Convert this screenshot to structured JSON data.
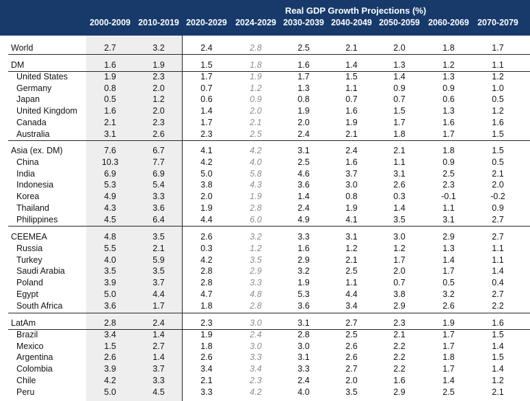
{
  "title": "Real GDP Growth Projections (%)",
  "columns": [
    "2000-2009",
    "2010-2019",
    "2020-2029",
    "2024-2029",
    "2030-2039",
    "2040-2049",
    "2050-2059",
    "2060-2069",
    "2070-2079"
  ],
  "groups": [
    {
      "rows": [
        {
          "name": "World",
          "values": [
            "2.7",
            "3.2",
            "2.4",
            "2.8",
            "2.5",
            "2.1",
            "2.0",
            "1.8",
            "1.7"
          ]
        }
      ]
    },
    {
      "rows": [
        {
          "name": "DM",
          "values": [
            "1.6",
            "1.9",
            "1.5",
            "1.8",
            "1.6",
            "1.4",
            "1.3",
            "1.2",
            "1.1"
          ]
        },
        {
          "name": "United States",
          "values": [
            "1.9",
            "2.3",
            "1.7",
            "1.9",
            "1.7",
            "1.5",
            "1.4",
            "1.3",
            "1.2"
          ]
        },
        {
          "name": "Germany",
          "values": [
            "0.8",
            "2.0",
            "0.7",
            "1.2",
            "1.3",
            "1.1",
            "0.9",
            "0.9",
            "1.0"
          ]
        },
        {
          "name": "Japan",
          "values": [
            "0.5",
            "1.2",
            "0.6",
            "0.9",
            "0.8",
            "0.7",
            "0.7",
            "0.6",
            "0.5"
          ]
        },
        {
          "name": "United Kingdom",
          "values": [
            "1.6",
            "2.0",
            "1.4",
            "2.0",
            "1.9",
            "1.6",
            "1.5",
            "1.3",
            "1.2"
          ]
        },
        {
          "name": "Canada",
          "values": [
            "2.1",
            "2.3",
            "1.7",
            "2.1",
            "2.0",
            "1.9",
            "1.7",
            "1.6",
            "1.6"
          ]
        },
        {
          "name": "Australia",
          "values": [
            "3.1",
            "2.6",
            "2.3",
            "2.5",
            "2.4",
            "2.1",
            "1.8",
            "1.7",
            "1.5"
          ]
        }
      ]
    },
    {
      "rows": [
        {
          "name": "Asia (ex. DM)",
          "values": [
            "7.6",
            "6.7",
            "4.1",
            "4.2",
            "3.1",
            "2.4",
            "2.1",
            "1.8",
            "1.5"
          ]
        },
        {
          "name": "China",
          "values": [
            "10.3",
            "7.7",
            "4.2",
            "4.0",
            "2.5",
            "1.6",
            "1.1",
            "0.9",
            "0.5"
          ]
        },
        {
          "name": "India",
          "values": [
            "6.9",
            "6.9",
            "5.0",
            "5.8",
            "4.6",
            "3.7",
            "3.1",
            "2.5",
            "2.1"
          ]
        },
        {
          "name": "Indonesia",
          "values": [
            "5.3",
            "5.4",
            "3.8",
            "4.3",
            "3.6",
            "3.0",
            "2.6",
            "2.3",
            "2.0"
          ]
        },
        {
          "name": "Korea",
          "values": [
            "4.9",
            "3.3",
            "2.0",
            "1.9",
            "1.4",
            "0.8",
            "0.3",
            "-0.1",
            "-0.2"
          ]
        },
        {
          "name": "Thailand",
          "values": [
            "4.3",
            "3.6",
            "1.9",
            "2.8",
            "2.4",
            "1.9",
            "1.4",
            "1.1",
            "0.9"
          ]
        },
        {
          "name": "Philippines",
          "values": [
            "4.5",
            "6.4",
            "4.4",
            "6.0",
            "4.9",
            "4.1",
            "3.5",
            "3.1",
            "2.7"
          ]
        }
      ]
    },
    {
      "rows": [
        {
          "name": "CEEMEA",
          "values": [
            "4.8",
            "3.5",
            "2.6",
            "3.2",
            "3.3",
            "3.1",
            "3.0",
            "2.9",
            "2.7"
          ]
        },
        {
          "name": "Russia",
          "values": [
            "5.5",
            "2.1",
            "0.3",
            "1.2",
            "1.6",
            "1.2",
            "1.2",
            "1.3",
            "1.1"
          ]
        },
        {
          "name": "Turkey",
          "values": [
            "4.0",
            "5.9",
            "4.2",
            "3.5",
            "2.9",
            "2.1",
            "1.7",
            "1.4",
            "1.1"
          ]
        },
        {
          "name": "Saudi Arabia",
          "values": [
            "3.5",
            "3.5",
            "2.8",
            "2.9",
            "3.2",
            "2.5",
            "2.0",
            "1.7",
            "1.4"
          ]
        },
        {
          "name": "Poland",
          "values": [
            "3.9",
            "3.7",
            "2.8",
            "3.3",
            "1.9",
            "1.1",
            "0.7",
            "0.5",
            "0.4"
          ]
        },
        {
          "name": "Egypt",
          "values": [
            "5.0",
            "4.4",
            "4.7",
            "4.8",
            "5.3",
            "4.4",
            "3.8",
            "3.2",
            "2.7"
          ]
        },
        {
          "name": "South Africa",
          "values": [
            "3.6",
            "1.7",
            "1.8",
            "2.8",
            "3.6",
            "3.4",
            "2.9",
            "2.6",
            "2.2"
          ]
        }
      ]
    },
    {
      "rows": [
        {
          "name": "LatAm",
          "values": [
            "2.8",
            "2.4",
            "2.3",
            "3.0",
            "3.1",
            "2.7",
            "2.3",
            "1.9",
            "1.6"
          ]
        },
        {
          "name": "Brazil",
          "values": [
            "3.4",
            "1.4",
            "1.9",
            "2.4",
            "2.8",
            "2.5",
            "2.1",
            "1.7",
            "1.5"
          ]
        },
        {
          "name": "Mexico",
          "values": [
            "1.5",
            "2.7",
            "1.8",
            "3.0",
            "3.0",
            "2.6",
            "2.2",
            "1.7",
            "1.4"
          ]
        },
        {
          "name": "Argentina",
          "values": [
            "2.6",
            "1.4",
            "2.6",
            "3.3",
            "3.1",
            "2.6",
            "2.2",
            "1.8",
            "1.5"
          ]
        },
        {
          "name": "Colombia",
          "values": [
            "3.9",
            "3.7",
            "3.4",
            "3.4",
            "3.3",
            "2.7",
            "2.2",
            "1.7",
            "1.4"
          ]
        },
        {
          "name": "Chile",
          "values": [
            "4.2",
            "3.3",
            "2.1",
            "2.3",
            "2.4",
            "2.0",
            "1.6",
            "1.4",
            "1.2"
          ]
        },
        {
          "name": "Peru",
          "values": [
            "5.0",
            "4.5",
            "3.3",
            "4.2",
            "4.0",
            "3.5",
            "2.9",
            "2.5",
            "2.1"
          ]
        }
      ]
    }
  ]
}
